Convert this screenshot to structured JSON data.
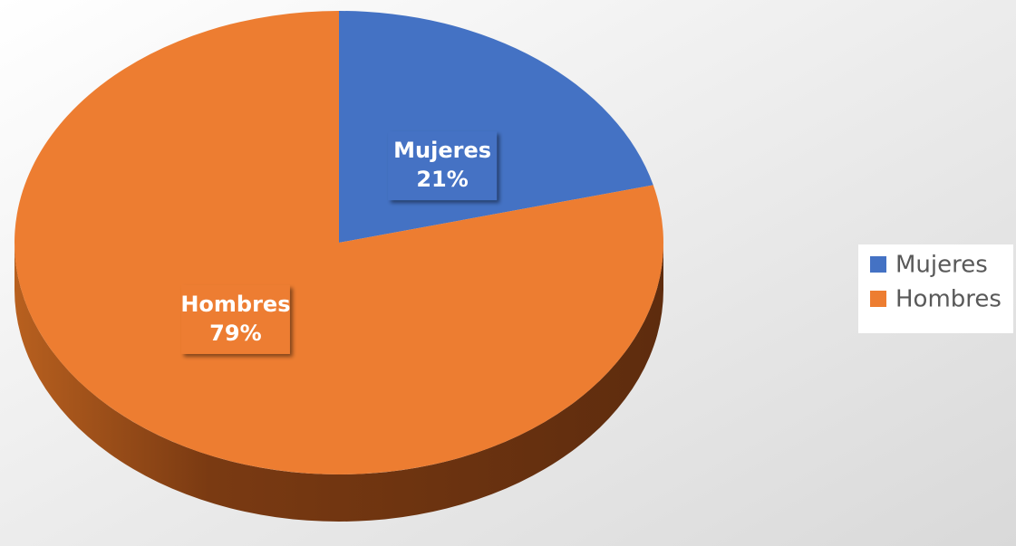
{
  "chart_data": {
    "type": "pie",
    "categories": [
      "Mujeres",
      "Hombres"
    ],
    "values": [
      21,
      79
    ],
    "value_labels": [
      "21%",
      "79%"
    ],
    "colors": [
      "#4472c4",
      "#ed7d31"
    ],
    "legend": "right"
  }
}
